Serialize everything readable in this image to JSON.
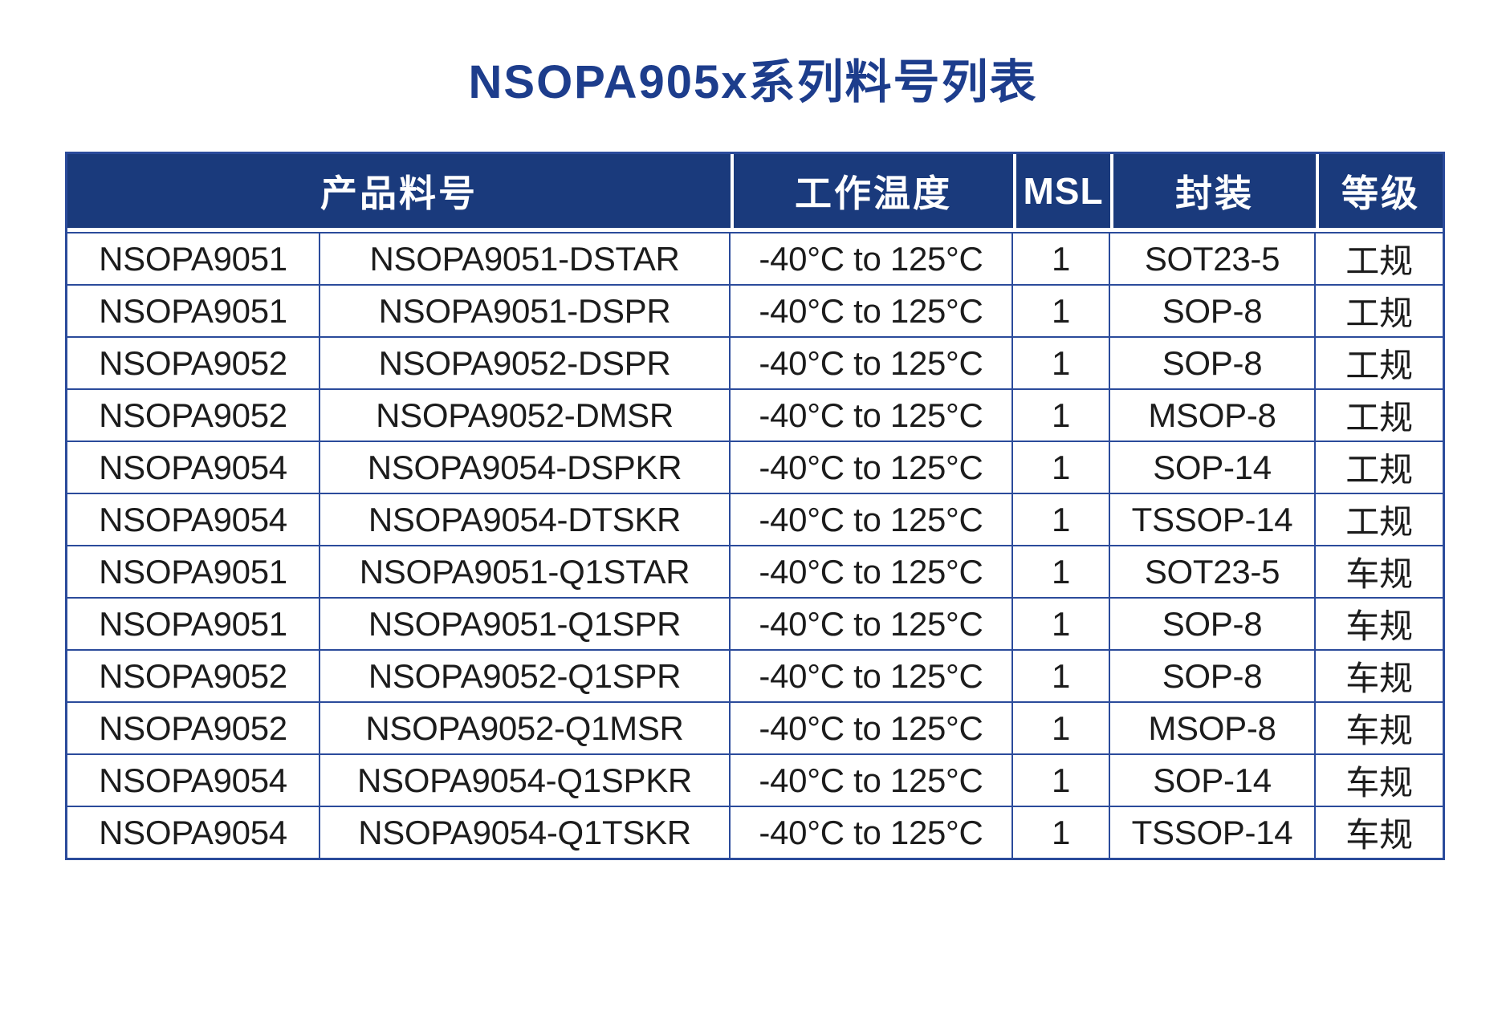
{
  "page": {
    "title": "NSOPA905x系列料号列表"
  },
  "colors": {
    "title_color": "#1d3d8c",
    "header_bg": "#1a3a7c",
    "header_text": "#ffffff",
    "border_color": "#2b4b9b",
    "body_text": "#1c1c1c"
  },
  "table": {
    "headers": [
      {
        "label": "产品料号",
        "colspan": 2
      },
      {
        "label": "工作温度",
        "colspan": 1
      },
      {
        "label": "MSL",
        "colspan": 1
      },
      {
        "label": "封装",
        "colspan": 1
      },
      {
        "label": "等级",
        "colspan": 1
      }
    ],
    "rows": [
      [
        "NSOPA9051",
        "NSOPA9051-DSTAR",
        "-40°C to 125°C",
        "1",
        "SOT23-5",
        "工规"
      ],
      [
        "NSOPA9051",
        "NSOPA9051-DSPR",
        "-40°C to 125°C",
        "1",
        "SOP-8",
        "工规"
      ],
      [
        "NSOPA9052",
        "NSOPA9052-DSPR",
        "-40°C to 125°C",
        "1",
        "SOP-8",
        "工规"
      ],
      [
        "NSOPA9052",
        "NSOPA9052-DMSR",
        "-40°C to 125°C",
        "1",
        "MSOP-8",
        "工规"
      ],
      [
        "NSOPA9054",
        "NSOPA9054-DSPKR",
        "-40°C to 125°C",
        "1",
        "SOP-14",
        "工规"
      ],
      [
        "NSOPA9054",
        "NSOPA9054-DTSKR",
        "-40°C to 125°C",
        "1",
        "TSSOP-14",
        "工规"
      ],
      [
        "NSOPA9051",
        "NSOPA9051-Q1STAR",
        "-40°C to 125°C",
        "1",
        "SOT23-5",
        "车规"
      ],
      [
        "NSOPA9051",
        "NSOPA9051-Q1SPR",
        "-40°C to 125°C",
        "1",
        "SOP-8",
        "车规"
      ],
      [
        "NSOPA9052",
        "NSOPA9052-Q1SPR",
        "-40°C to 125°C",
        "1",
        "SOP-8",
        "车规"
      ],
      [
        "NSOPA9052",
        "NSOPA9052-Q1MSR",
        "-40°C to 125°C",
        "1",
        "MSOP-8",
        "车规"
      ],
      [
        "NSOPA9054",
        "NSOPA9054-Q1SPKR",
        "-40°C to 125°C",
        "1",
        "SOP-14",
        "车规"
      ],
      [
        "NSOPA9054",
        "NSOPA9054-Q1TSKR",
        "-40°C to 125°C",
        "1",
        "TSSOP-14",
        "车规"
      ]
    ]
  }
}
